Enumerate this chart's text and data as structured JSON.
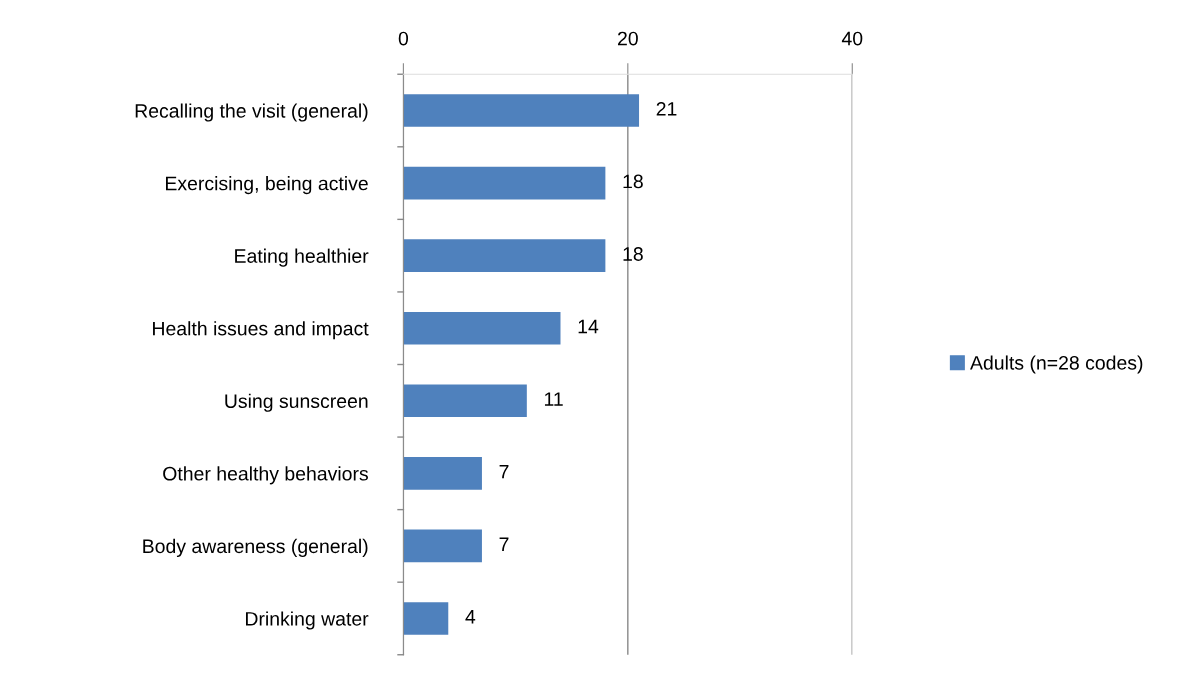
{
  "chart_data": {
    "type": "bar",
    "orientation": "horizontal",
    "categories": [
      "Recalling the visit (general)",
      "Exercising, being active",
      "Eating healthier",
      "Health issues and impact",
      "Using sunscreen",
      "Other healthy behaviors",
      "Body awareness (general)",
      "Drinking water"
    ],
    "series": [
      {
        "name": "Adults (n=28 codes)",
        "color": "#4f81bd",
        "values": [
          21,
          18,
          18,
          14,
          11,
          7,
          7,
          4
        ]
      }
    ],
    "xlim": [
      0,
      40
    ],
    "xticks": [
      0,
      20,
      40
    ],
    "grid": "x",
    "legend": "right",
    "data_labels": true
  }
}
